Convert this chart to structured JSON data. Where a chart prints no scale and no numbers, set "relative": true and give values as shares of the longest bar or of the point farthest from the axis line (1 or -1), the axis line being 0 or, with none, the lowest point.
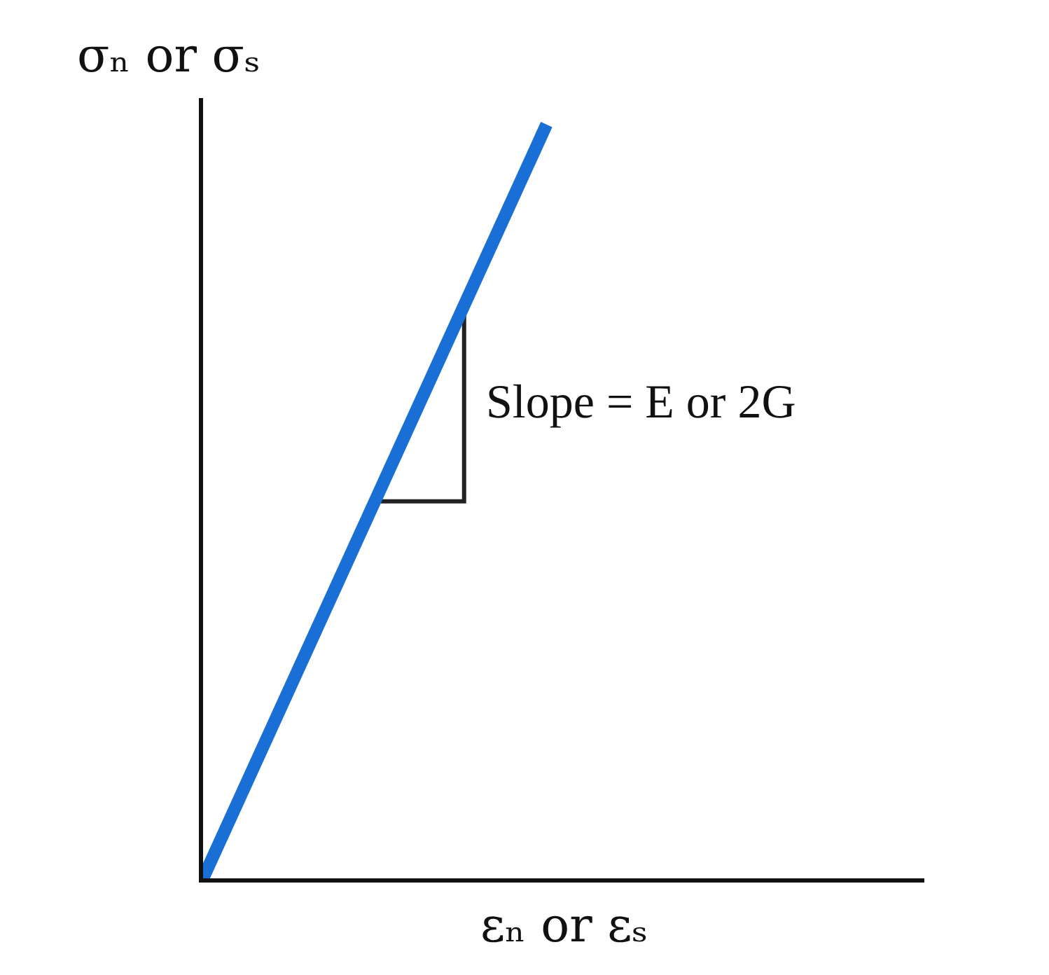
{
  "chart_data": {
    "type": "line",
    "relative": true,
    "xlabel": "εₙ or εₛ",
    "ylabel": "σₙ or σₛ",
    "annotations": [
      "Slope = E or 2G"
    ],
    "categories": [
      null,
      null,
      null
    ],
    "series": [
      {
        "color": "#1a6fd6",
        "values": [
          0,
          1,
          null
        ]
      }
    ],
    "grid": false,
    "marker": "none",
    "line_style": "solid"
  }
}
